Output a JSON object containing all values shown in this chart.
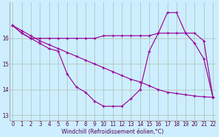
{
  "xlabel": "Windchill (Refroidissement éolien,°C)",
  "background_color": "#cceeff",
  "grid_color": "#aabbaa",
  "line_color": "#990099",
  "hours": [
    0,
    1,
    2,
    3,
    4,
    5,
    6,
    7,
    8,
    9,
    10,
    11,
    12,
    13,
    14,
    15,
    16,
    17,
    18,
    19,
    20,
    21,
    22
  ],
  "line_diag": [
    16.5,
    16.3,
    16.1,
    15.9,
    15.75,
    15.6,
    15.45,
    15.3,
    15.15,
    15.0,
    14.85,
    14.7,
    14.55,
    14.4,
    14.3,
    14.15,
    14.0,
    13.9,
    13.85,
    13.8,
    13.75,
    13.72,
    13.7
  ],
  "line_flat": [
    16.5,
    16.2,
    16.0,
    16.0,
    16.0,
    16.0,
    16.0,
    16.0,
    16.0,
    16.0,
    16.1,
    16.1,
    16.1,
    16.1,
    16.1,
    16.1,
    16.2,
    16.2,
    16.2,
    16.2,
    16.2,
    15.9,
    13.7
  ],
  "line_curve": [
    16.5,
    16.2,
    16.0,
    15.8,
    15.6,
    15.5,
    14.6,
    14.1,
    13.9,
    13.55,
    13.35,
    13.35,
    13.35,
    13.65,
    14.0,
    15.5,
    16.2,
    17.0,
    17.0,
    16.2,
    15.8,
    15.2,
    13.7
  ],
  "ylim": [
    12.8,
    17.4
  ],
  "yticks": [
    13,
    14,
    15,
    16
  ],
  "xlim": [
    -0.3,
    22.3
  ]
}
